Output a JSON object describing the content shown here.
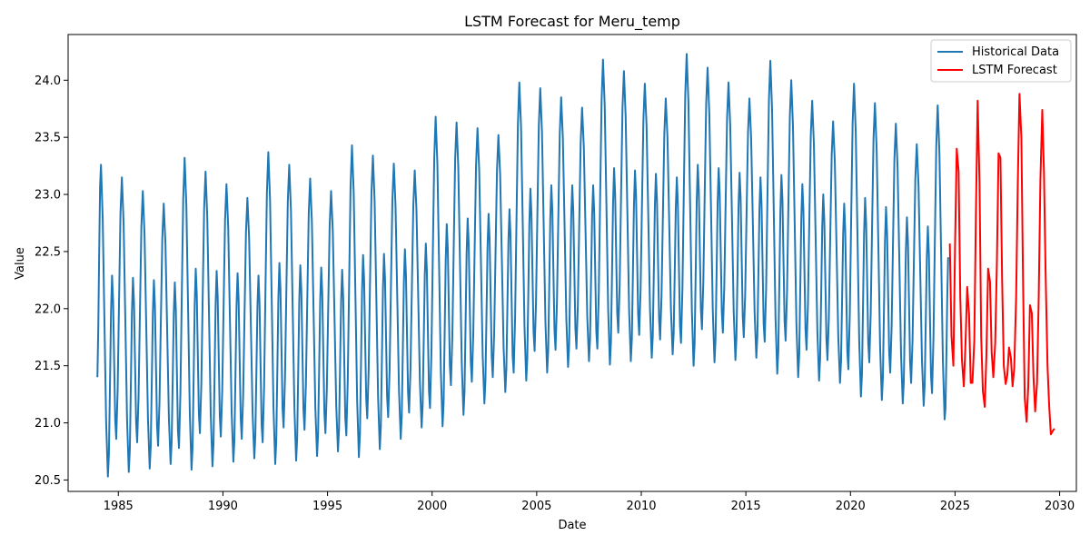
{
  "chart_data": {
    "type": "line",
    "title": "LSTM Forecast for Meru_temp",
    "xlabel": "Date",
    "ylabel": "Value",
    "xlim": [
      1982.6,
      2030.8
    ],
    "ylim": [
      20.4,
      24.4
    ],
    "x_ticks": [
      1985,
      1990,
      1995,
      2000,
      2005,
      2010,
      2015,
      2020,
      2025,
      2030
    ],
    "y_ticks": [
      20.5,
      21.0,
      21.5,
      22.0,
      22.5,
      23.0,
      23.5,
      24.0
    ],
    "grid": false,
    "legend": "top-right",
    "series": [
      {
        "name": "Historical Data",
        "color": "#1f77b4",
        "start_year": 1984,
        "end_year": 2024.67,
        "yearly_peaks": [
          23.26,
          23.15,
          23.03,
          22.92,
          23.32,
          23.2,
          23.09,
          22.97,
          23.37,
          23.26,
          23.14,
          23.03,
          23.43,
          23.34,
          23.27,
          23.21,
          23.68,
          23.63,
          23.58,
          23.52,
          23.98,
          23.93,
          23.85,
          23.76,
          24.18,
          24.08,
          23.97,
          23.84,
          24.23,
          24.11,
          23.98,
          23.84,
          24.17,
          24.0,
          23.82,
          23.64,
          23.97,
          23.8,
          23.62,
          23.44,
          23.78
        ],
        "yearly_second_peaks": [
          22.29,
          22.27,
          22.25,
          22.23,
          22.35,
          22.33,
          22.31,
          22.29,
          22.4,
          22.38,
          22.36,
          22.34,
          22.47,
          22.48,
          22.52,
          22.57,
          22.74,
          22.79,
          22.83,
          22.87,
          23.05,
          23.08,
          23.08,
          23.08,
          23.23,
          23.21,
          23.18,
          23.15,
          23.26,
          23.23,
          23.19,
          23.15,
          23.17,
          23.09,
          23.0,
          22.92,
          22.97,
          22.89,
          22.8,
          22.72,
          null
        ],
        "yearly_troughs": [
          20.53,
          20.57,
          20.6,
          20.64,
          20.59,
          20.62,
          20.66,
          20.69,
          20.64,
          20.67,
          20.71,
          20.75,
          20.7,
          20.77,
          20.86,
          20.96,
          20.97,
          21.07,
          21.17,
          21.27,
          21.37,
          21.44,
          21.49,
          21.54,
          21.51,
          21.54,
          21.57,
          21.6,
          21.5,
          21.53,
          21.55,
          21.57,
          21.43,
          21.4,
          21.37,
          21.35,
          21.23,
          21.2,
          21.17,
          21.15,
          21.03
        ],
        "yearly_secondary_troughs": [
          20.86,
          20.83,
          20.8,
          20.78,
          20.91,
          20.88,
          20.86,
          20.83,
          20.96,
          20.94,
          20.91,
          20.89,
          21.04,
          21.05,
          21.09,
          21.13,
          21.33,
          21.36,
          21.4,
          21.44,
          21.63,
          21.64,
          21.65,
          21.65,
          21.79,
          21.77,
          21.73,
          21.7,
          21.82,
          21.79,
          21.75,
          21.71,
          21.72,
          21.64,
          21.55,
          21.47,
          21.53,
          21.44,
          21.35,
          21.26,
          null
        ],
        "last_value": 22.45
      },
      {
        "name": "LSTM Forecast",
        "color": "#ff0000",
        "x": [
          2024.75,
          2024.83,
          2024.92,
          2025.0,
          2025.08,
          2025.17,
          2025.25,
          2025.33,
          2025.42,
          2025.5,
          2025.58,
          2025.67,
          2025.75,
          2025.83,
          2025.92,
          2026.0,
          2026.08,
          2026.17,
          2026.25,
          2026.33,
          2026.42,
          2026.5,
          2026.58,
          2026.67,
          2026.75,
          2026.83,
          2026.92,
          2027.0,
          2027.08,
          2027.17,
          2027.25,
          2027.33,
          2027.42,
          2027.5,
          2027.58,
          2027.67,
          2027.75,
          2027.83,
          2027.92,
          2028.0,
          2028.08,
          2028.17,
          2028.25,
          2028.33,
          2028.42,
          2028.5,
          2028.58,
          2028.67,
          2028.75,
          2028.83,
          2028.92,
          2029.0,
          2029.08,
          2029.17,
          2029.25,
          2029.33,
          2029.42,
          2029.5,
          2029.58,
          2029.67,
          2029.75
        ],
        "y": [
          22.57,
          21.76,
          21.5,
          22.55,
          23.4,
          23.2,
          22.1,
          21.55,
          21.32,
          21.7,
          22.19,
          21.95,
          21.35,
          21.35,
          21.72,
          22.86,
          23.82,
          23.1,
          21.75,
          21.28,
          21.14,
          21.6,
          22.35,
          22.24,
          21.62,
          21.4,
          21.7,
          22.4,
          23.36,
          23.32,
          22.25,
          21.5,
          21.34,
          21.42,
          21.66,
          21.57,
          21.32,
          21.48,
          22.1,
          23.1,
          23.88,
          23.5,
          22.25,
          21.22,
          21.01,
          21.32,
          22.03,
          21.96,
          21.4,
          21.1,
          21.35,
          22.1,
          23.12,
          23.74,
          23.2,
          22.3,
          21.5,
          21.15,
          20.9,
          20.93,
          20.95
        ]
      }
    ]
  }
}
